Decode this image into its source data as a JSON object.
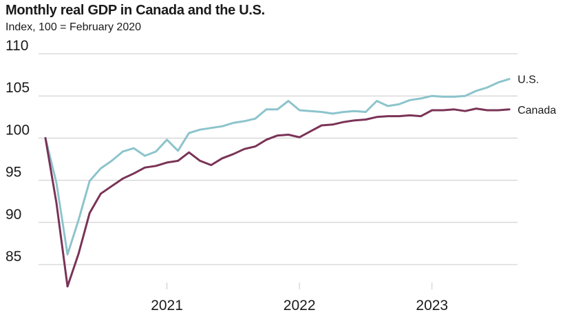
{
  "title": "Monthly real GDP in Canada and the U.S.",
  "subtitle": "Index, 100 = February 2020",
  "chart_data": {
    "type": "line",
    "title": "Monthly real GDP in Canada and the U.S.",
    "subtitle": "Index, 100 = February 2020",
    "x": [
      "2020-02",
      "2020-03",
      "2020-04",
      "2020-05",
      "2020-06",
      "2020-07",
      "2020-08",
      "2020-09",
      "2020-10",
      "2020-11",
      "2020-12",
      "2021-01",
      "2021-02",
      "2021-03",
      "2021-04",
      "2021-05",
      "2021-06",
      "2021-07",
      "2021-08",
      "2021-09",
      "2021-10",
      "2021-11",
      "2021-12",
      "2022-01",
      "2022-02",
      "2022-03",
      "2022-04",
      "2022-05",
      "2022-06",
      "2022-07",
      "2022-08",
      "2022-09",
      "2022-10",
      "2022-11",
      "2022-12",
      "2023-01",
      "2023-02",
      "2023-03",
      "2023-04",
      "2023-05",
      "2023-06",
      "2023-07",
      "2023-08"
    ],
    "series": [
      {
        "name": "U.S.",
        "color": "#8cc4cc",
        "values": [
          100.0,
          94.7,
          86.2,
          90.3,
          94.9,
          96.4,
          97.3,
          98.4,
          98.8,
          97.9,
          98.4,
          99.8,
          98.5,
          100.6,
          101.0,
          101.2,
          101.4,
          101.8,
          102.0,
          102.3,
          103.4,
          103.4,
          104.4,
          103.3,
          103.2,
          103.1,
          102.9,
          103.1,
          103.2,
          103.1,
          104.4,
          103.8,
          104.0,
          104.5,
          104.7,
          105.0,
          104.9,
          104.9,
          105.0,
          105.6,
          106.0,
          106.6,
          107.0
        ]
      },
      {
        "name": "Canada",
        "color": "#7a3356",
        "values": [
          100.0,
          92.3,
          82.4,
          86.3,
          91.1,
          93.4,
          94.3,
          95.2,
          95.8,
          96.5,
          96.7,
          97.1,
          97.3,
          98.3,
          97.3,
          96.8,
          97.6,
          98.1,
          98.7,
          99.0,
          99.8,
          100.3,
          100.4,
          100.1,
          100.8,
          101.5,
          101.6,
          101.9,
          102.1,
          102.2,
          102.5,
          102.6,
          102.6,
          102.7,
          102.6,
          103.3,
          103.3,
          103.4,
          103.2,
          103.5,
          103.3,
          103.3,
          103.4
        ]
      }
    ],
    "xticks": [
      {
        "label": "2021",
        "value": "2021-01"
      },
      {
        "label": "2022",
        "value": "2022-01"
      },
      {
        "label": "2023",
        "value": "2023-01"
      }
    ],
    "yticks": [
      85,
      90,
      95,
      100,
      105,
      110
    ],
    "ylim": [
      82,
      110
    ],
    "xlabel": "",
    "ylabel": "",
    "grid": true,
    "legend": "direct labels at line ends"
  }
}
